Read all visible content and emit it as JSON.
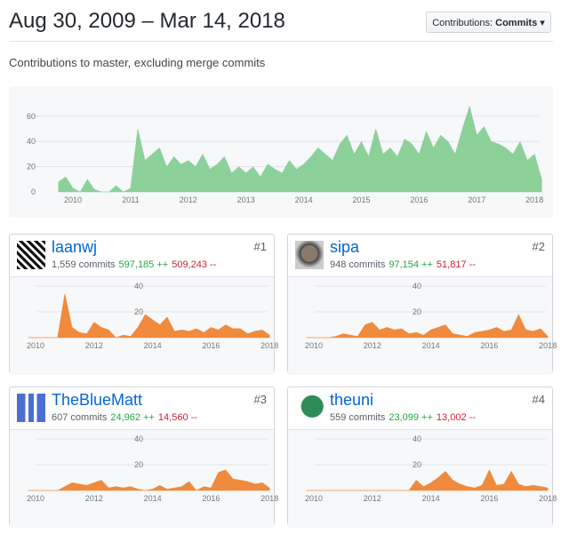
{
  "header": {
    "title": "Aug 30, 2009 – Mar 14, 2018",
    "dropdown_prefix": "Contributions:",
    "dropdown_value": "Commits",
    "subtitle": "Contributions to master, excluding merge commits"
  },
  "colors": {
    "main_area": "#8cd09a",
    "contributor_area": "#f08a3c",
    "add": "#28a745",
    "del": "#cb2431",
    "link": "#0366d6"
  },
  "chart_data": [
    {
      "type": "area",
      "x_start": 2009.75,
      "x_step": 0.125,
      "xticks": [
        "2010",
        "2011",
        "2012",
        "2013",
        "2014",
        "2015",
        "2016",
        "2017",
        "2018"
      ],
      "yticks": [
        "0",
        "20",
        "40",
        "60"
      ],
      "ylim": [
        0,
        70
      ],
      "values": [
        8,
        12,
        3,
        0,
        10,
        2,
        0,
        0,
        5,
        0,
        3,
        50,
        25,
        30,
        35,
        20,
        28,
        22,
        25,
        20,
        30,
        18,
        22,
        28,
        15,
        20,
        15,
        20,
        12,
        22,
        18,
        15,
        25,
        18,
        22,
        28,
        35,
        30,
        25,
        38,
        45,
        30,
        40,
        28,
        50,
        30,
        35,
        28,
        42,
        38,
        30,
        48,
        35,
        45,
        40,
        30,
        50,
        68,
        45,
        52,
        40,
        38,
        35,
        30,
        40,
        25,
        30,
        10
      ]
    },
    {
      "type": "area",
      "x_start": 2009.75,
      "x_step": 0.25,
      "xticks": [
        "2010",
        "2012",
        "2014",
        "2016",
        "2018"
      ],
      "yticks": [
        "20",
        "40"
      ],
      "ylim": [
        0,
        47
      ],
      "values": [
        0,
        0,
        0,
        0,
        0,
        34,
        8,
        4,
        3,
        12,
        8,
        6,
        0,
        2,
        1,
        8,
        18,
        14,
        10,
        16,
        5,
        6,
        5,
        7,
        4,
        8,
        6,
        10,
        7,
        7,
        3,
        5,
        6,
        2
      ]
    },
    {
      "type": "area",
      "x_start": 2009.75,
      "x_step": 0.25,
      "xticks": [
        "2010",
        "2012",
        "2014",
        "2016",
        "2018"
      ],
      "yticks": [
        "20",
        "40"
      ],
      "ylim": [
        0,
        47
      ],
      "values": [
        0,
        0,
        0,
        0,
        1,
        3,
        2,
        1,
        10,
        12,
        6,
        8,
        6,
        7,
        3,
        4,
        2,
        6,
        8,
        10,
        3,
        2,
        1,
        4,
        5,
        6,
        8,
        5,
        6,
        18,
        6,
        5,
        7,
        1
      ]
    },
    {
      "type": "area",
      "x_start": 2009.75,
      "x_step": 0.25,
      "xticks": [
        "2010",
        "2012",
        "2014",
        "2016",
        "2018"
      ],
      "yticks": [
        "20",
        "40"
      ],
      "ylim": [
        0,
        47
      ],
      "values": [
        0,
        0,
        0,
        0,
        0,
        3,
        6,
        5,
        4,
        6,
        8,
        2,
        3,
        2,
        3,
        1,
        0,
        1,
        4,
        1,
        2,
        3,
        7,
        0,
        3,
        2,
        14,
        16,
        9,
        8,
        7,
        5,
        6,
        2
      ]
    },
    {
      "type": "area",
      "x_start": 2009.75,
      "x_step": 0.25,
      "xticks": [
        "2010",
        "2012",
        "2014",
        "2016",
        "2018"
      ],
      "yticks": [
        "20",
        "40"
      ],
      "ylim": [
        0,
        47
      ],
      "values": [
        0,
        0,
        0,
        0,
        0,
        0,
        0,
        0,
        0,
        0,
        0,
        0,
        0,
        0,
        0,
        8,
        3,
        6,
        10,
        15,
        8,
        5,
        3,
        2,
        4,
        16,
        4,
        5,
        15,
        5,
        3,
        4,
        3,
        2
      ]
    }
  ],
  "contributors": [
    {
      "name": "laanwj",
      "commits": "1,559 commits",
      "additions": "597,185 ++",
      "deletions": "509,243 --",
      "rank": "#1"
    },
    {
      "name": "sipa",
      "commits": "948 commits",
      "additions": "97,154 ++",
      "deletions": "51,817 --",
      "rank": "#2"
    },
    {
      "name": "TheBlueMatt",
      "commits": "607 commits",
      "additions": "24,962 ++",
      "deletions": "14,560 --",
      "rank": "#3"
    },
    {
      "name": "theuni",
      "commits": "559 commits",
      "additions": "23,099 ++",
      "deletions": "13,002 --",
      "rank": "#4"
    }
  ]
}
